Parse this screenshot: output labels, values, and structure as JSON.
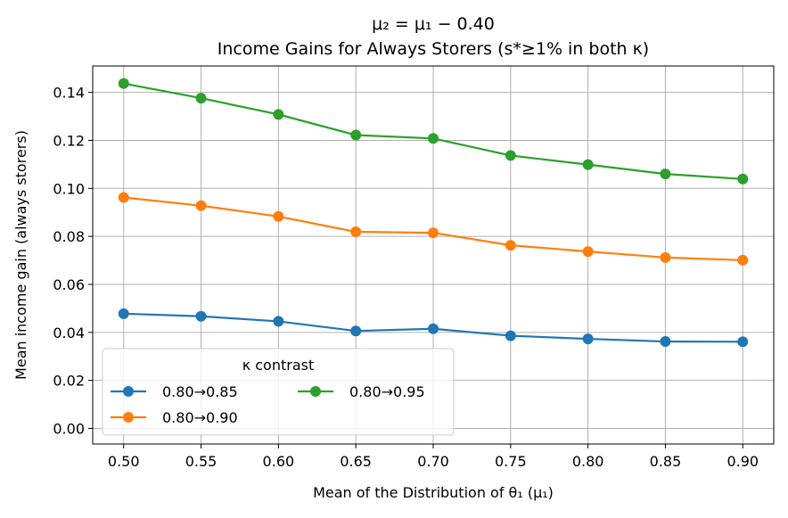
{
  "chart_data": {
    "type": "line",
    "title_line1": "μ₂ = μ₁ − 0.40",
    "title_line2": "Income Gains for Always Storers (s*≥1% in both κ)",
    "xlabel": "Mean of the Distribution of θ₁ (μ₁)",
    "ylabel": "Mean income gain (always storers)",
    "x": [
      0.5,
      0.55,
      0.6,
      0.65,
      0.7,
      0.75,
      0.8,
      0.85,
      0.9
    ],
    "x_ticks": [
      "0.50",
      "0.55",
      "0.60",
      "0.65",
      "0.70",
      "0.75",
      "0.80",
      "0.85",
      "0.90"
    ],
    "y_ticks": [
      "0.00",
      "0.02",
      "0.04",
      "0.06",
      "0.08",
      "0.10",
      "0.12",
      "0.14"
    ],
    "xlim": [
      0.48,
      0.92
    ],
    "ylim": [
      -0.0065,
      0.151
    ],
    "grid": true,
    "legend_title": "κ contrast",
    "legend_position": "lower-left",
    "series": [
      {
        "name": "0.80→0.85",
        "color": "#1f77b4",
        "values": [
          0.0478,
          0.0467,
          0.0446,
          0.0406,
          0.0415,
          0.0386,
          0.0373,
          0.0362,
          0.0361
        ]
      },
      {
        "name": "0.80→0.90",
        "color": "#ff7f0e",
        "values": [
          0.0962,
          0.0928,
          0.0883,
          0.0819,
          0.0815,
          0.0763,
          0.0737,
          0.0712,
          0.0701
        ]
      },
      {
        "name": "0.80→0.95",
        "color": "#2ca02c",
        "values": [
          0.1437,
          0.1376,
          0.1308,
          0.1222,
          0.1208,
          0.1137,
          0.1099,
          0.106,
          0.1039
        ]
      }
    ]
  }
}
